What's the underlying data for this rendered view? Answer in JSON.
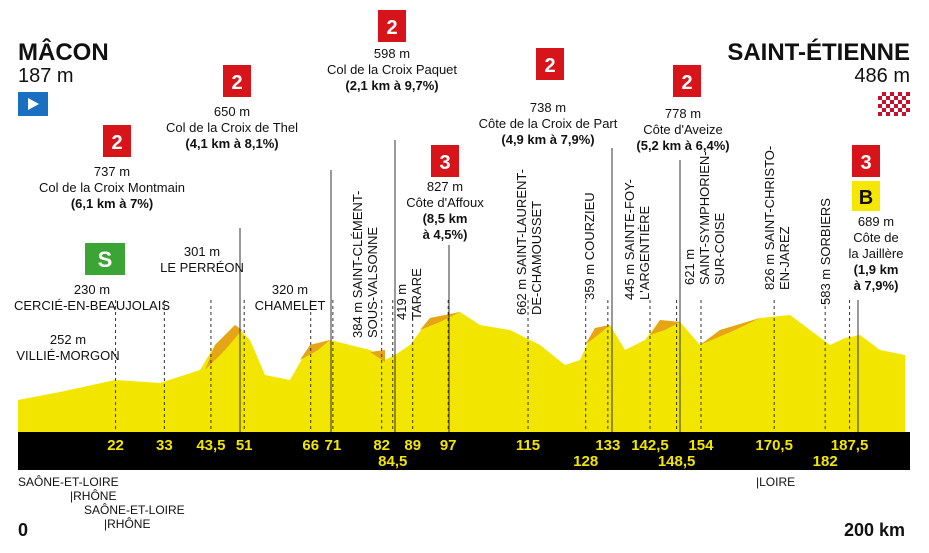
{
  "start": {
    "name": "MÂCON",
    "altitude": "187 m"
  },
  "finish": {
    "name": "SAINT-ÉTIENNE",
    "altitude": "486 m"
  },
  "climbs": [
    {
      "category": "2",
      "altitude": "737 m",
      "name": [
        "Col de la Croix Montmain"
      ],
      "detail": [
        "(6,1 km à 7%)"
      ]
    },
    {
      "category": "2",
      "altitude": "650 m",
      "name": [
        "Col de la Croix de Thel"
      ],
      "detail": [
        "(4,1 km à 8,1%)"
      ]
    },
    {
      "category": "2",
      "altitude": "598 m",
      "name": [
        "Col de la Croix Paquet"
      ],
      "detail": [
        "(2,1 km à 9,7%)"
      ]
    },
    {
      "category": "3",
      "altitude": "827 m",
      "name": [
        "Côte d'Affoux"
      ],
      "detail": [
        "(8,5 km",
        "à 4,5%)"
      ]
    },
    {
      "category": "2",
      "altitude": "738 m",
      "name": [
        "Côte de la Croix de Part"
      ],
      "detail": [
        "(4,9 km à 7,9%)"
      ]
    },
    {
      "category": "2",
      "altitude": "778 m",
      "name": [
        "Côte d'Aveize"
      ],
      "detail": [
        "(5,2 km à 6,4%)"
      ]
    },
    {
      "category": "3",
      "altitude": "689 m",
      "name": [
        "Côte de",
        "la Jaillère"
      ],
      "detail": [
        "(1,9 km",
        "à 7,9%)"
      ],
      "bonus": "B"
    }
  ],
  "sprint": "S",
  "places": [
    {
      "altitude": "252 m",
      "name": "VILLIÉ-MORGON"
    },
    {
      "altitude": "230 m",
      "name": "CERCIÉ-EN-BEAUJOLAIS"
    },
    {
      "altitude": "301 m",
      "name": "LE PERRÉON"
    },
    {
      "altitude": "320 m",
      "name": "CHAMELET"
    }
  ],
  "vertical_places": [
    [
      "384 m SAINT-CLÉMENT-",
      "SOUS-VALSONNE"
    ],
    [
      "419 m",
      "TARARE"
    ],
    [
      "662 m SAINT-LAURENT-",
      "DE-CHAMOUSSET"
    ],
    [
      "359 m COURZIEU"
    ],
    [
      "445 m SAINTE-FOY-",
      "L'ARGENTIÈRE"
    ],
    [
      "621 m",
      "SAINT-SYMPHORIEN-",
      "SUR-COISE"
    ],
    [
      "826 m SAINT-CHRISTO-",
      "EN-JAREZ"
    ],
    [
      "583 m SORBIERS"
    ]
  ],
  "km_markers": [
    "22",
    "33",
    "43,5",
    "51",
    "66",
    "71",
    "82",
    "84,5",
    "89",
    "97",
    "115",
    "128",
    "133",
    "142,5",
    "148,5",
    "154",
    "170,5",
    "182",
    "187,5"
  ],
  "departments": [
    "SAÔNE-ET-LOIRE",
    "|RHÔNE",
    "SAÔNE-ET-LOIRE",
    "|RHÔNE",
    "|LOIRE"
  ],
  "distance_start": "0",
  "distance_end": "200 km"
}
